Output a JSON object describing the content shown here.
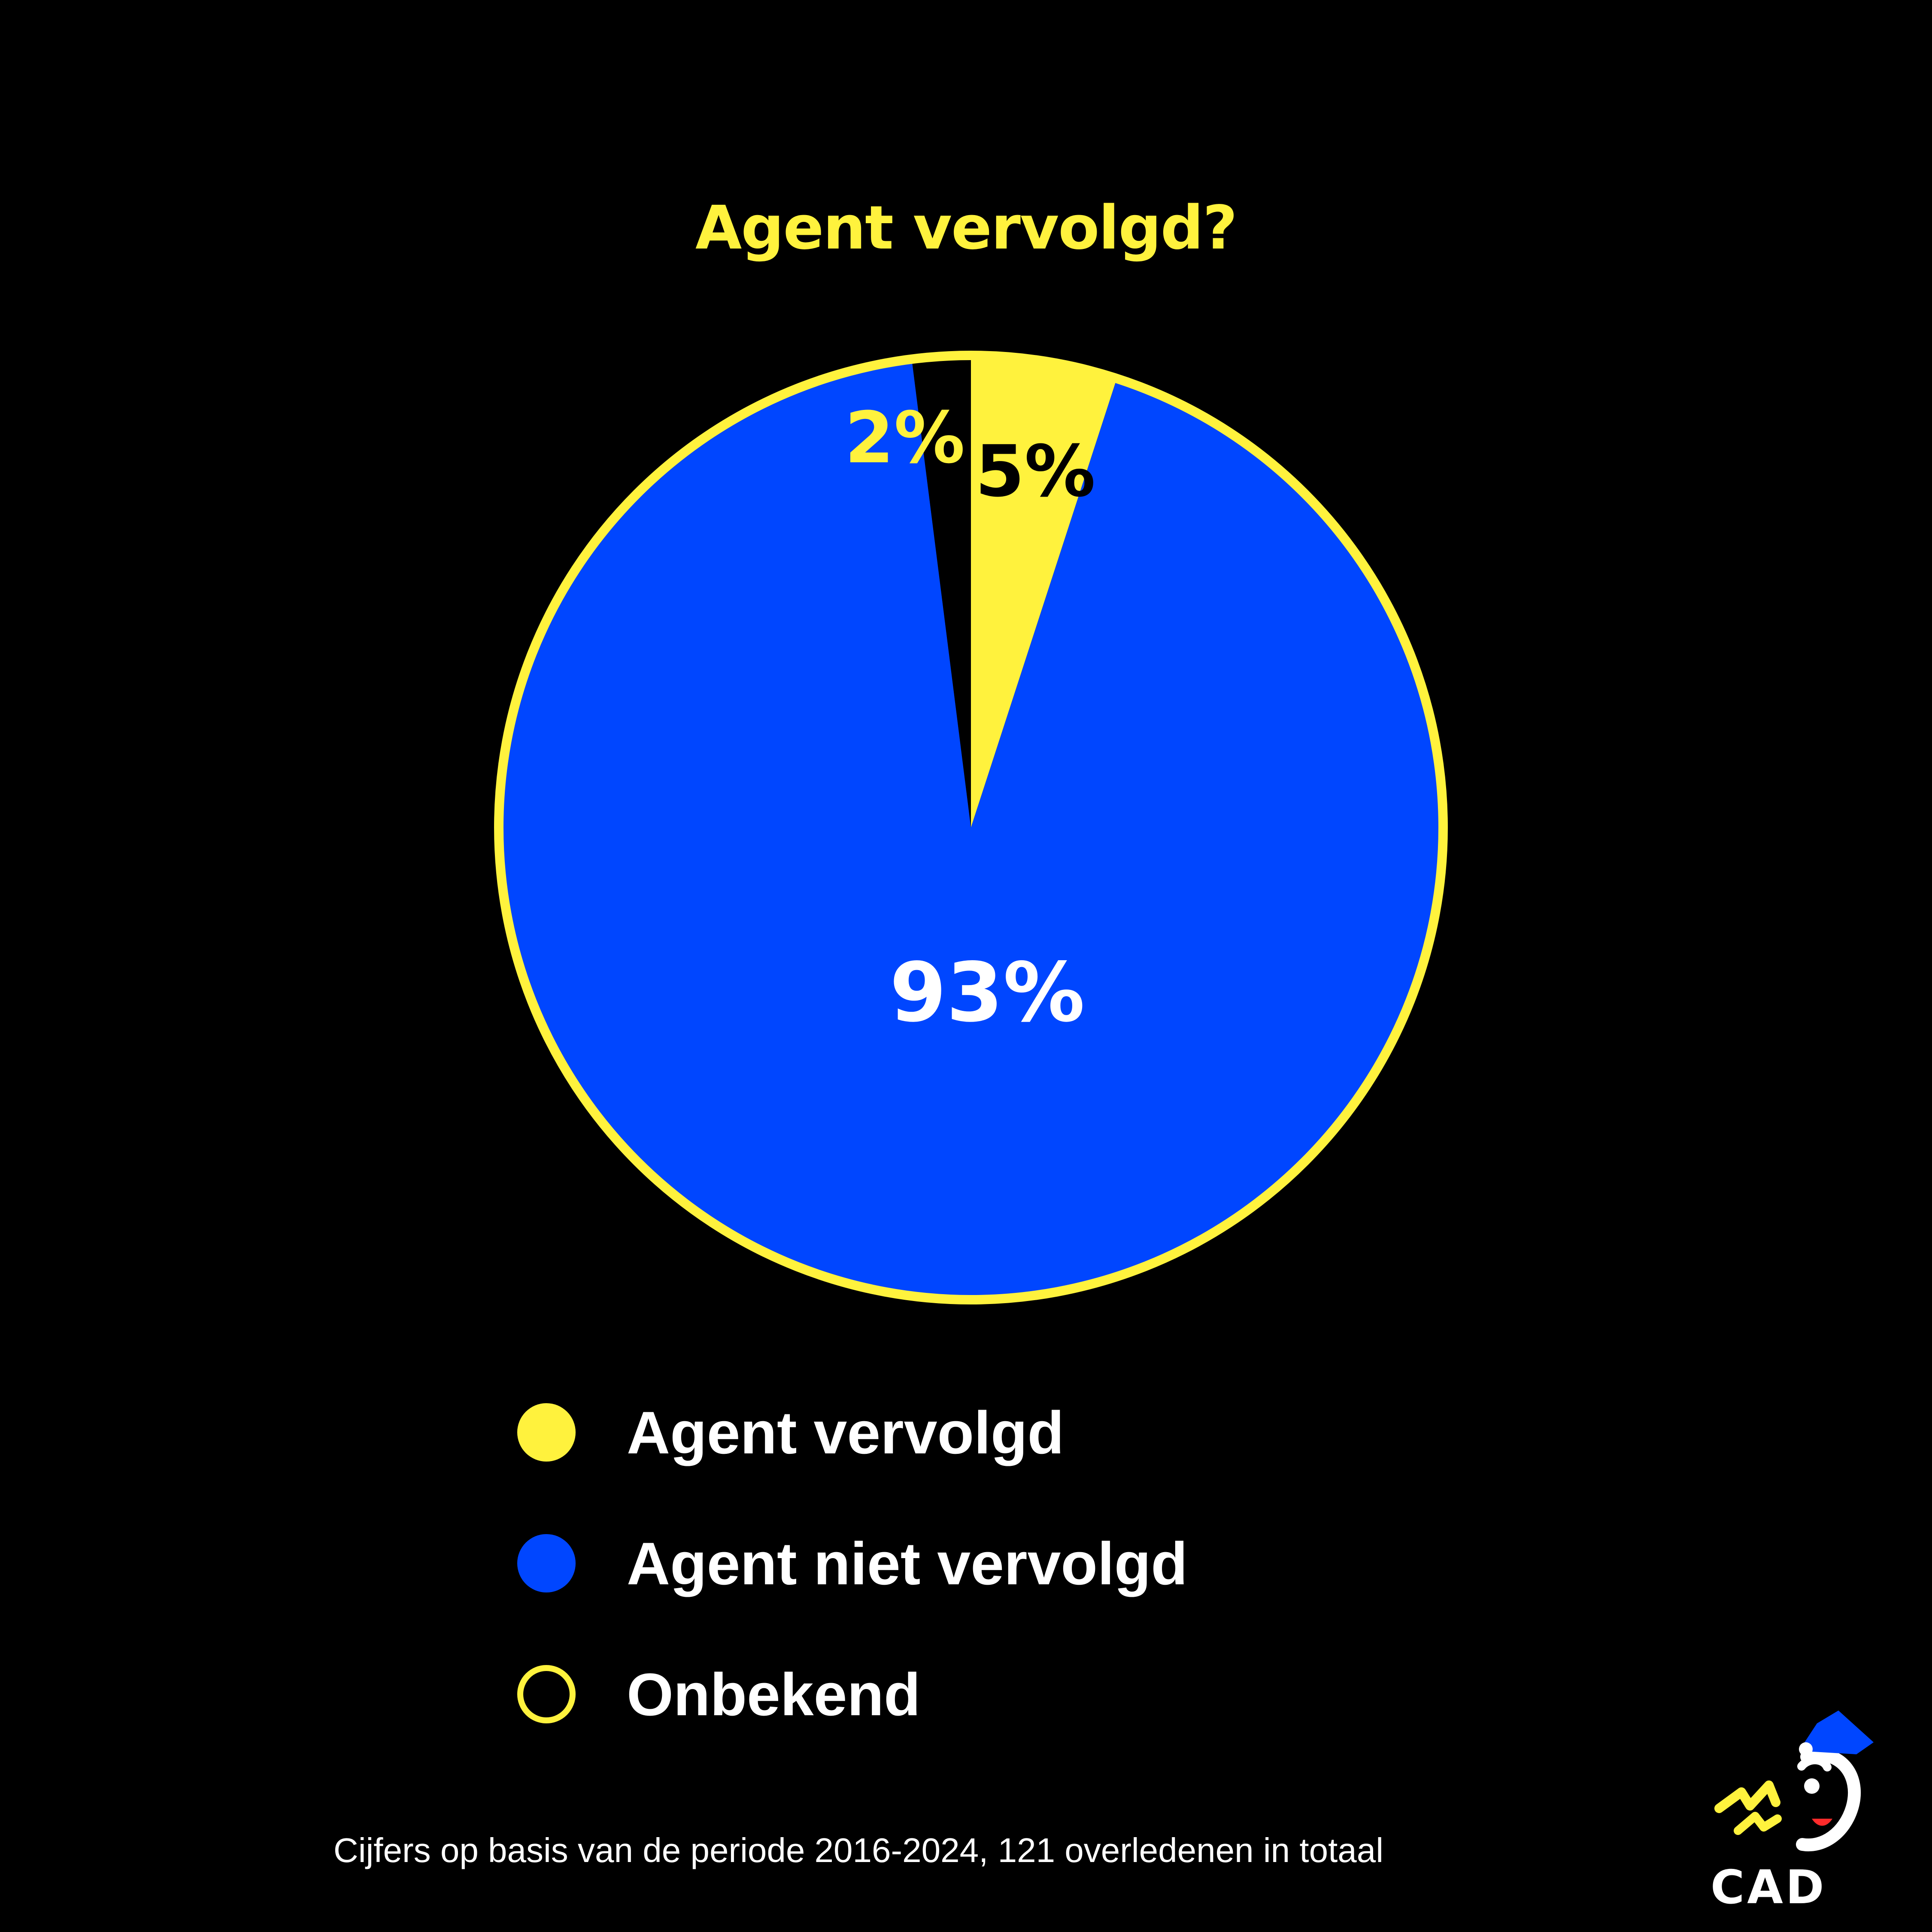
{
  "chart_data": {
    "type": "pie",
    "title": "Agent vervolgd?",
    "slices": [
      {
        "label": "Agent vervolgd",
        "value": 5,
        "display": "5%",
        "color": "#FFF23D",
        "label_color": "#000000"
      },
      {
        "label": "Agent niet vervolgd",
        "value": 93,
        "display": "93%",
        "color": "#0046FF",
        "label_color": "#FFFFFF"
      },
      {
        "label": "Onbekend",
        "value": 2,
        "display": "2%",
        "color": "#000000",
        "label_color": "#FFF23D"
      }
    ],
    "start_at": "top",
    "direction": "clockwise",
    "outline_color": "#FFF23D",
    "legend_position": "bottom"
  },
  "footnote": "Cijfers op basis van de periode 2016-2024, 121 overledenen in totaal",
  "logo": {
    "text": "CAD",
    "icon": "police-cap-face-icon"
  },
  "colors": {
    "background": "#000000",
    "accent": "#FFF23D",
    "primary": "#0046FF",
    "text": "#FFFFFF"
  }
}
